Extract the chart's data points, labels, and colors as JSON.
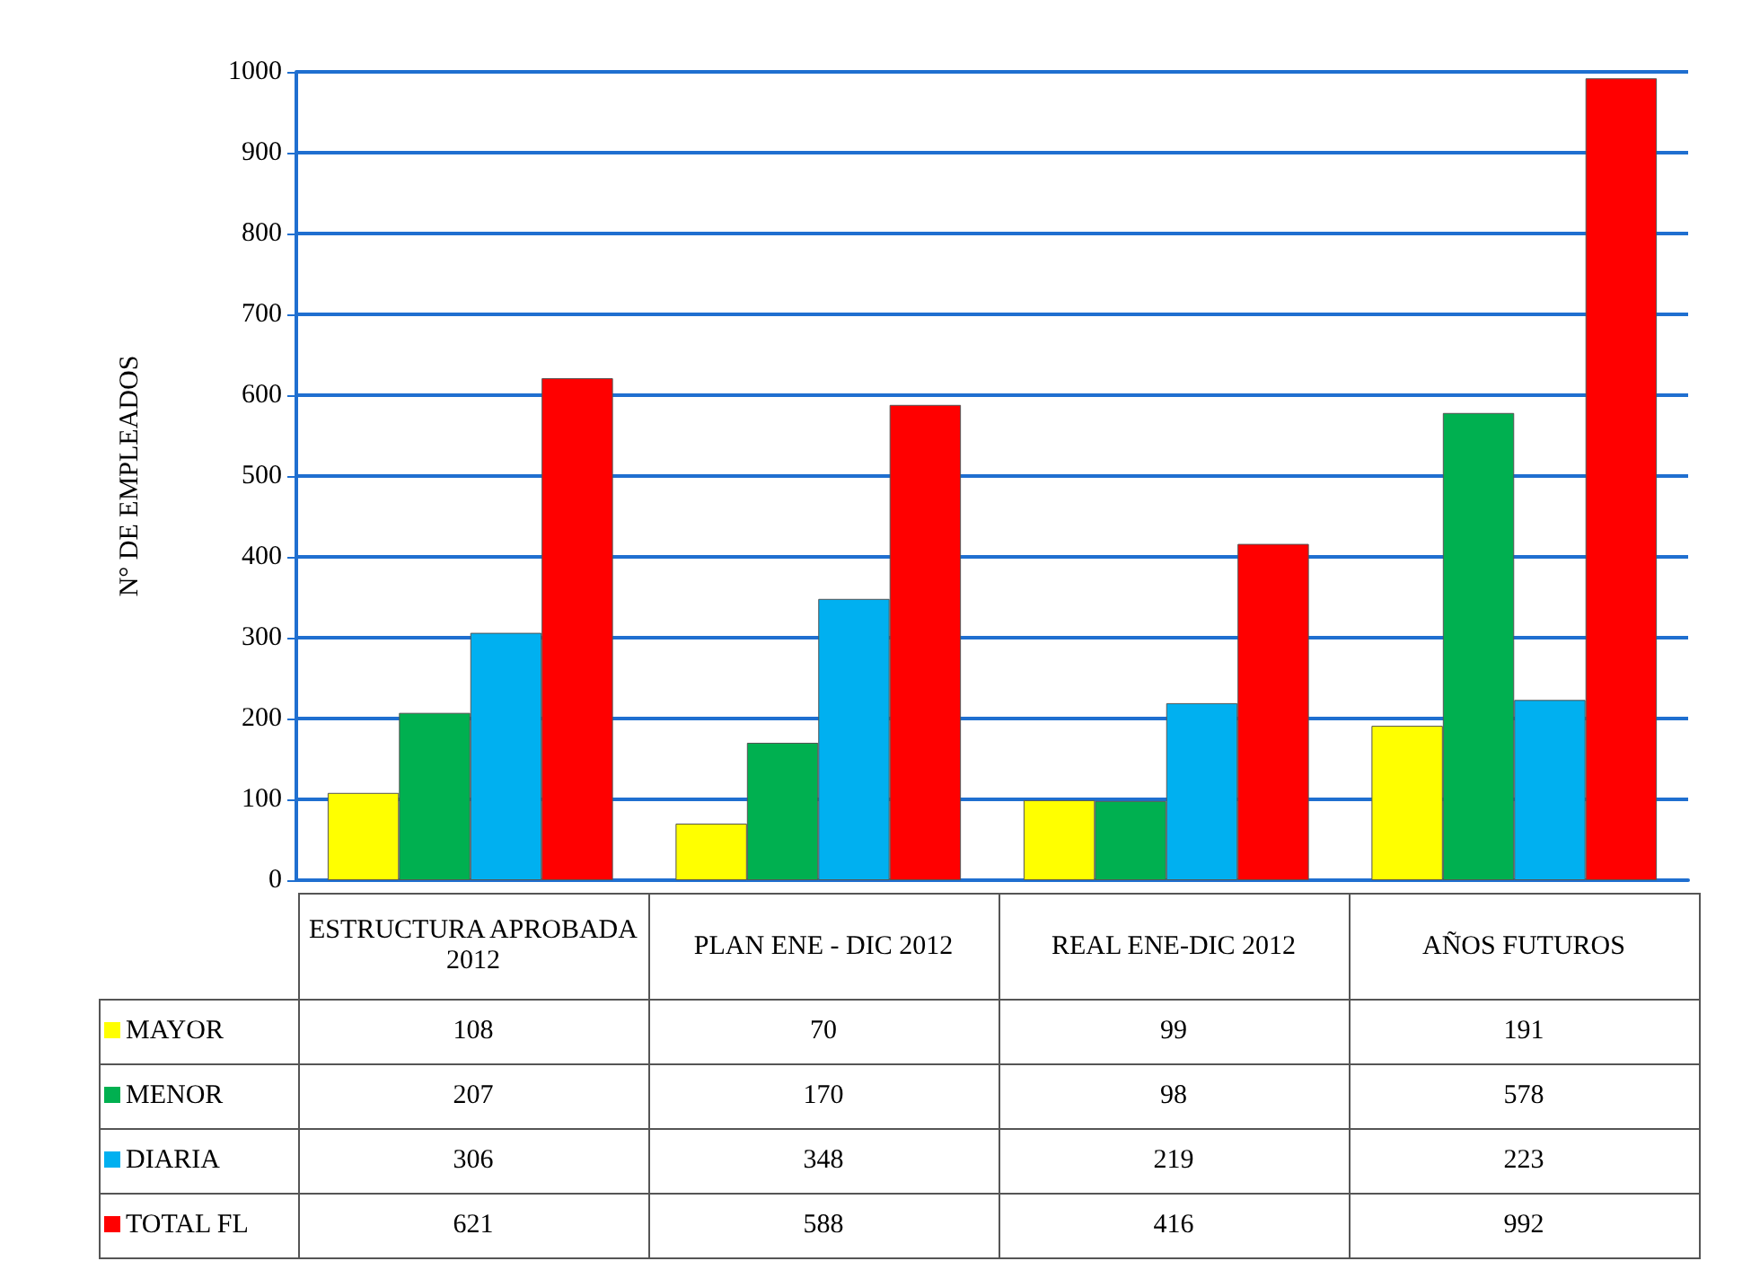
{
  "chart_data": {
    "type": "bar",
    "ylabel": "N° DE EMPLEADOS",
    "categories": [
      "ESTRUCTURA APROBADA 2012",
      "PLAN ENE - DIC 2012",
      "REAL ENE-DIC 2012",
      "AÑOS FUTUROS"
    ],
    "series": [
      {
        "name": "MAYOR",
        "color": "#ffff00",
        "values": [
          108,
          70,
          99,
          191
        ]
      },
      {
        "name": "MENOR",
        "color": "#00b050",
        "values": [
          207,
          170,
          98,
          578
        ]
      },
      {
        "name": "DIARIA",
        "color": "#00b0f0",
        "values": [
          306,
          348,
          219,
          223
        ]
      },
      {
        "name": "TOTAL FL",
        "color": "#ff0000",
        "values": [
          621,
          588,
          416,
          992
        ]
      }
    ],
    "ylim": [
      0,
      1000
    ],
    "yticks": [
      0,
      100,
      200,
      300,
      400,
      500,
      600,
      700,
      800,
      900,
      1000
    ],
    "grid": "y",
    "legend": "bottom left",
    "data_labels": true
  }
}
